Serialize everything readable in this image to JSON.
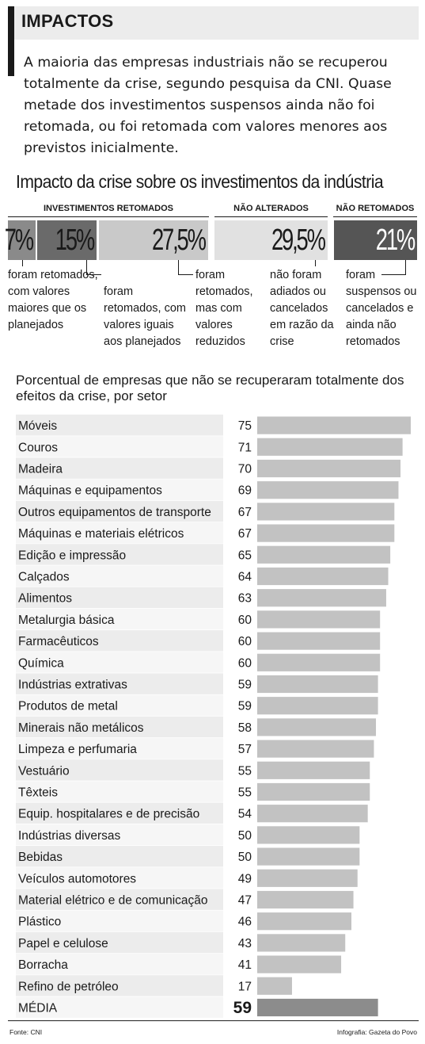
{
  "header": {
    "title": "IMPACTOS"
  },
  "intro": "A maioria das empresas industriais não se recuperou totalmente da crise, segundo pesquisa da CNI. Quase metade dos investimentos suspensos ainda não foi retomada, ou foi retomada com valores menores aos previstos inicialmente.",
  "chart_data": [
    {
      "type": "bar",
      "title": "Impacto da crise sobre os investimentos da indústria",
      "groups": [
        {
          "label": "INVESTIMENTOS RETOMADOS"
        },
        {
          "label": "NÃO ALTERADOS"
        },
        {
          "label": "NÃO RETOMADOS"
        }
      ],
      "categories": [
        "foram retomados, com valores maiores que os planejados",
        "foram retomados, com valores iguais aos planejados",
        "foram retomados, mas com valores reduzidos",
        "não foram adiados ou cancelados em razão da crise",
        "foram suspensos ou cancelados e ainda não retomados"
      ],
      "values": [
        7,
        15,
        27.5,
        29.5,
        21
      ],
      "value_labels": [
        "7%",
        "15%",
        "27,5%",
        "29,5%",
        "21%"
      ],
      "colors": [
        "#8a8a8a",
        "#6a6a6a",
        "#c9c9c9",
        "#e1e1e1",
        "#555555"
      ],
      "text_colors": [
        "#1a1a1a",
        "#1a1a1a",
        "#1a1a1a",
        "#1a1a1a",
        "#ffffff"
      ]
    },
    {
      "type": "bar",
      "orientation": "horizontal",
      "title": "Porcentual de empresas que não se recuperaram totalmente dos efeitos da crise, por setor",
      "categories": [
        "Móveis",
        "Couros",
        "Madeira",
        "Máquinas e equipamentos",
        "Outros equipamentos de transporte",
        "Máquinas e materiais elétricos",
        "Edição e impressão",
        "Calçados",
        "Alimentos",
        "Metalurgia básica",
        "Farmacêuticos",
        "Química",
        "Indústrias extrativas",
        "Produtos de metal",
        "Minerais não metálicos",
        "Limpeza e perfumaria",
        "Vestuário",
        "Têxteis",
        "Equip. hospitalares e de precisão",
        "Indústrias diversas",
        "Bebidas",
        "Veículos automotores",
        "Material elétrico e de comunicação",
        "Plástico",
        "Papel e celulose",
        "Borracha",
        "Refino de petróleo",
        "MÉDIA"
      ],
      "values": [
        75,
        71,
        70,
        69,
        67,
        67,
        65,
        64,
        63,
        60,
        60,
        60,
        59,
        59,
        58,
        57,
        55,
        55,
        54,
        50,
        50,
        49,
        47,
        46,
        43,
        41,
        17,
        59
      ],
      "highlight_last": true,
      "xlim": [
        0,
        75
      ],
      "colors": {
        "bar": "#c2c2c2",
        "bar_average": "#8c8c8c",
        "row_bg": "#ececec"
      }
    }
  ],
  "footer": {
    "source": "Fonte: CNI",
    "credit": "Infografia: Gazeta do Povo"
  }
}
